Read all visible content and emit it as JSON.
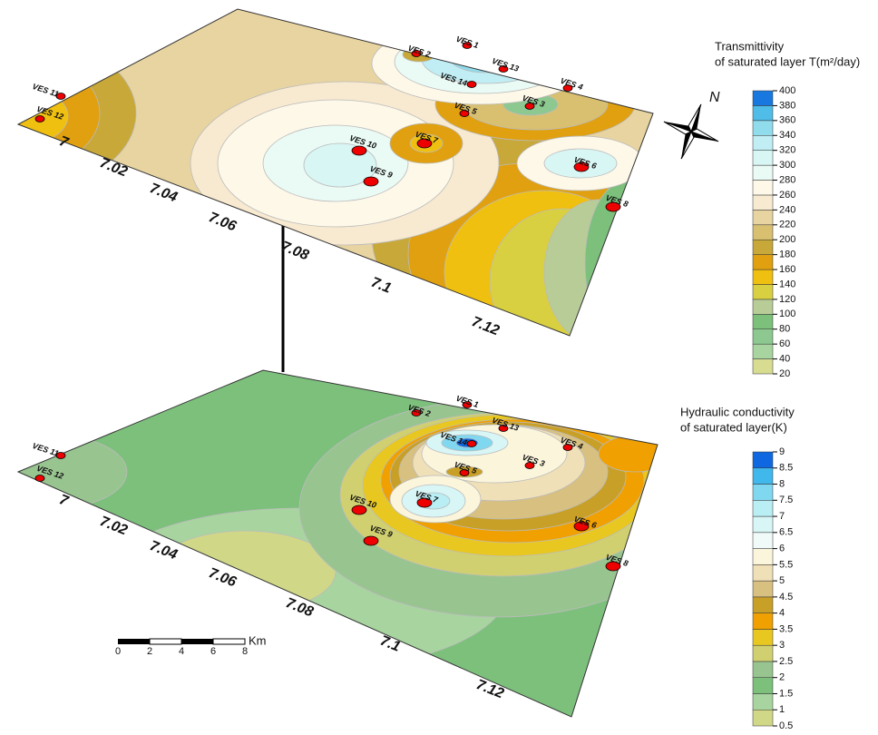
{
  "panels": [
    {
      "title": [
        "Transmittivity",
        "of saturated layer T(m²/day)"
      ],
      "colorbar_ticks": [
        20,
        40,
        60,
        80,
        100,
        120,
        140,
        160,
        180,
        200,
        220,
        240,
        260,
        280,
        300,
        320,
        340,
        360,
        380,
        400
      ],
      "colors": [
        "#d8dc90",
        "#a8d4a0",
        "#8cc890",
        "#7cc07c",
        "#b8cc98",
        "#d8d040",
        "#f0c010",
        "#e0a010",
        "#c8a838",
        "#d8c070",
        "#e8d4a0",
        "#f8ead0",
        "#fdf8e8",
        "#eafaf4",
        "#d8f6f4",
        "#c0eef4",
        "#90dcec",
        "#50bce8",
        "#1878e0"
      ],
      "axis_labels": [
        "7",
        "7.02",
        "7.04",
        "7.06",
        "7.08",
        "7.1",
        "7.12"
      ],
      "stations": [
        "VES 1",
        "VES 2",
        "VES 13",
        "VES 14",
        "VES 4",
        "VES 3",
        "VES 5",
        "VES 10",
        "VES 7",
        "VES 6",
        "VES 9",
        "VES 8",
        "VES 11",
        "VES 12"
      ]
    },
    {
      "title": [
        "Hydraulic conductivity",
        "of saturated layer(K)"
      ],
      "colorbar_ticks": [
        0.5,
        1,
        1.5,
        2,
        2.5,
        3,
        3.5,
        4,
        4.5,
        5,
        5.5,
        6,
        6.5,
        7,
        7.5,
        8,
        8.5,
        9
      ],
      "colors": [
        "#d0d888",
        "#a8d4a0",
        "#7cc07c",
        "#98c490",
        "#d0d070",
        "#e8c820",
        "#f0a000",
        "#c8a028",
        "#d8c080",
        "#f0e0b8",
        "#fbf5dc",
        "#f0faf8",
        "#d8f6f6",
        "#b8eef4",
        "#80d8f0",
        "#40b8ec",
        "#1068e0"
      ],
      "axis_labels": [
        "7",
        "7.02",
        "7.04",
        "7.06",
        "7.08",
        "7.1",
        "7.12"
      ],
      "stations": [
        "VES 1",
        "VES 2",
        "VES 13",
        "VES 14",
        "VES 4",
        "VES 3",
        "VES 5",
        "VES 10",
        "VES 7",
        "VES 6",
        "VES 9",
        "VES 8",
        "VES 11",
        "VES 12"
      ]
    }
  ],
  "north": "N",
  "scale_bar": {
    "labels": [
      "0",
      "2",
      "4",
      "6",
      "8",
      "Km"
    ]
  }
}
